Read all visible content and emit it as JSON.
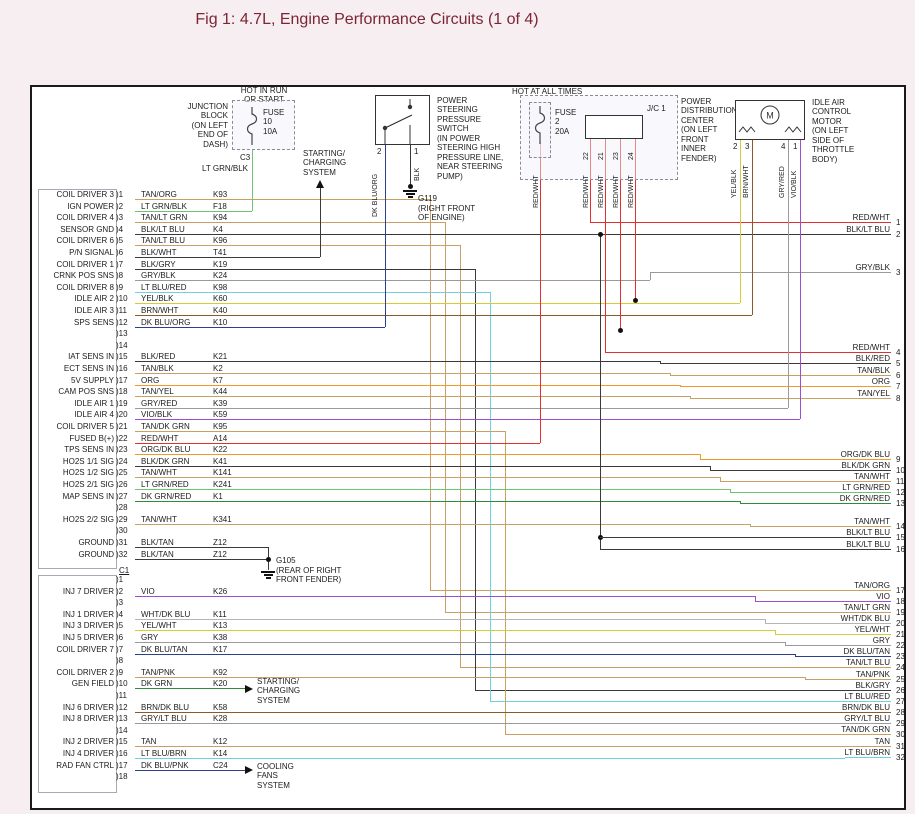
{
  "title": "Fig 1: 4.7L, Engine Performance Circuits (1 of 4)",
  "colors": {
    "title_text": "#7c2535",
    "page_bg": "#f6eef0",
    "diagram_bg": "#ffffff"
  },
  "wire_colors": {
    "TAN": "#c9a063",
    "LT GRN": "#6fc46f",
    "BLK": "#3a3a3a",
    "YEL": "#d6cc38",
    "BRN": "#8a5a2b",
    "DK BLU": "#2b3f8c",
    "GRY": "#9a9a9a",
    "LT BLU": "#6fd0e0",
    "VIO": "#9b4fd0",
    "ORG": "#f09a2a",
    "RED": "#e23030",
    "DK GRN": "#2e8b3a",
    "WHT": "#b5b5b5",
    "PNK": "#eba0c0"
  },
  "pcm": {
    "c3": {
      "label": "C3",
      "pins": [
        {
          "pin": "1",
          "label": "COIL DRIVER 3",
          "wire": "TAN/ORG",
          "code": "K93"
        },
        {
          "pin": "2",
          "label": "IGN POWER",
          "wire": "LT GRN/BLK",
          "code": "F18"
        },
        {
          "pin": "3",
          "label": "COIL DRIVER 4",
          "wire": "TAN/LT GRN",
          "code": "K94"
        },
        {
          "pin": "4",
          "label": "SENSOR GND",
          "wire": "BLK/LT BLU",
          "code": "K4"
        },
        {
          "pin": "5",
          "label": "COIL DRIVER 6",
          "wire": "TAN/LT BLU",
          "code": "K96"
        },
        {
          "pin": "6",
          "label": "P/N SIGNAL",
          "wire": "BLK/WHT",
          "code": "T41"
        },
        {
          "pin": "7",
          "label": "COIL DRIVER 1",
          "wire": "BLK/GRY",
          "code": "K19"
        },
        {
          "pin": "8",
          "label": "CRNK POS SNS",
          "wire": "GRY/BLK",
          "code": "K24"
        },
        {
          "pin": "9",
          "label": "COIL DRIVER 8",
          "wire": "LT BLU/RED",
          "code": "K98"
        },
        {
          "pin": "10",
          "label": "IDLE AIR 2",
          "wire": "YEL/BLK",
          "code": "K60"
        },
        {
          "pin": "11",
          "label": "IDLE AIR 3",
          "wire": "BRN/WHT",
          "code": "K40"
        },
        {
          "pin": "12",
          "label": "SPS SENS",
          "wire": "DK BLU/ORG",
          "code": "K10"
        },
        {
          "pin": "13",
          "label": "",
          "wire": "",
          "code": ""
        },
        {
          "pin": "14",
          "label": "",
          "wire": "",
          "code": ""
        },
        {
          "pin": "15",
          "label": "IAT SENS IN",
          "wire": "BLK/RED",
          "code": "K21"
        },
        {
          "pin": "16",
          "label": "ECT SENS IN",
          "wire": "TAN/BLK",
          "code": "K2"
        },
        {
          "pin": "17",
          "label": "5V SUPPLY",
          "wire": "ORG",
          "code": "K7"
        },
        {
          "pin": "18",
          "label": "CAM POS SNS",
          "wire": "TAN/YEL",
          "code": "K44"
        },
        {
          "pin": "19",
          "label": "IDLE AIR 1",
          "wire": "GRY/RED",
          "code": "K39"
        },
        {
          "pin": "20",
          "label": "IDLE AIR 4",
          "wire": "VIO/BLK",
          "code": "K59"
        },
        {
          "pin": "21",
          "label": "COIL DRIVER 5",
          "wire": "TAN/DK GRN",
          "code": "K95"
        },
        {
          "pin": "22",
          "label": "FUSED B(+)",
          "wire": "RED/WHT",
          "code": "A14"
        },
        {
          "pin": "23",
          "label": "TPS SENS IN",
          "wire": "ORG/DK BLU",
          "code": "K22"
        },
        {
          "pin": "24",
          "label": "HO2S 1/1 SIG",
          "wire": "BLK/DK GRN",
          "code": "K41"
        },
        {
          "pin": "25",
          "label": "HO2S 1/2 SIG",
          "wire": "TAN/WHT",
          "code": "K141"
        },
        {
          "pin": "26",
          "label": "HO2S 2/1 SIG",
          "wire": "LT GRN/RED",
          "code": "K241"
        },
        {
          "pin": "27",
          "label": "MAP SENS IN",
          "wire": "DK GRN/RED",
          "code": "K1"
        },
        {
          "pin": "28",
          "label": "",
          "wire": "",
          "code": ""
        },
        {
          "pin": "29",
          "label": "HO2S 2/2 SIG",
          "wire": "TAN/WHT",
          "code": "K341"
        },
        {
          "pin": "30",
          "label": "",
          "wire": "",
          "code": ""
        },
        {
          "pin": "31",
          "label": "GROUND",
          "wire": "BLK/TAN",
          "code": "Z12"
        },
        {
          "pin": "32",
          "label": "GROUND",
          "wire": "BLK/TAN",
          "code": "Z12"
        }
      ]
    },
    "c1": {
      "label": "C1",
      "pins": [
        {
          "pin": "1",
          "label": "",
          "wire": "",
          "code": ""
        },
        {
          "pin": "2",
          "label": "INJ 7 DRIVER",
          "wire": "VIO",
          "code": "K26"
        },
        {
          "pin": "3",
          "label": "",
          "wire": "",
          "code": ""
        },
        {
          "pin": "4",
          "label": "INJ 1 DRIVER",
          "wire": "WHT/DK BLU",
          "code": "K11"
        },
        {
          "pin": "5",
          "label": "INJ 3 DRIVER",
          "wire": "YEL/WHT",
          "code": "K13"
        },
        {
          "pin": "6",
          "label": "INJ 5 DRIVER",
          "wire": "GRY",
          "code": "K38"
        },
        {
          "pin": "7",
          "label": "COIL DRIVER 7",
          "wire": "DK BLU/TAN",
          "code": "K17"
        },
        {
          "pin": "8",
          "label": "",
          "wire": "",
          "code": ""
        },
        {
          "pin": "9",
          "label": "COIL DRIVER 2",
          "wire": "TAN/PNK",
          "code": "K92"
        },
        {
          "pin": "10",
          "label": "GEN FIELD",
          "wire": "DK GRN",
          "code": "K20"
        },
        {
          "pin": "11",
          "label": "",
          "wire": "",
          "code": ""
        },
        {
          "pin": "12",
          "label": "INJ 6 DRIVER",
          "wire": "BRN/DK BLU",
          "code": "K58"
        },
        {
          "pin": "13",
          "label": "INJ 8 DRIVER",
          "wire": "GRY/LT BLU",
          "code": "K28"
        },
        {
          "pin": "14",
          "label": "",
          "wire": "",
          "code": ""
        },
        {
          "pin": "15",
          "label": "INJ 2 DRIVER",
          "wire": "TAN",
          "code": "K12"
        },
        {
          "pin": "16",
          "label": "INJ 4 DRIVER",
          "wire": "LT BLU/BRN",
          "code": "K14"
        },
        {
          "pin": "17",
          "label": "RAD FAN CTRL",
          "wire": "DK BLU/PNK",
          "code": "C24"
        },
        {
          "pin": "18",
          "label": "",
          "wire": "",
          "code": ""
        }
      ]
    }
  },
  "right_terminals": [
    {
      "num": "1",
      "wire": "RED/WHT"
    },
    {
      "num": "2",
      "wire": "BLK/LT BLU"
    },
    {
      "num": "3",
      "wire": "GRY/BLK"
    },
    {
      "num": "4",
      "wire": "RED/WHT"
    },
    {
      "num": "5",
      "wire": "BLK/RED"
    },
    {
      "num": "6",
      "wire": "TAN/BLK"
    },
    {
      "num": "7",
      "wire": "ORG"
    },
    {
      "num": "8",
      "wire": "TAN/YEL"
    },
    {
      "num": "9",
      "wire": "ORG/DK BLU"
    },
    {
      "num": "10",
      "wire": "BLK/DK GRN"
    },
    {
      "num": "11",
      "wire": "TAN/WHT"
    },
    {
      "num": "12",
      "wire": "LT GRN/RED"
    },
    {
      "num": "13",
      "wire": "DK GRN/RED"
    },
    {
      "num": "14",
      "wire": "TAN/WHT"
    },
    {
      "num": "15",
      "wire": "BLK/LT BLU"
    },
    {
      "num": "16",
      "wire": "BLK/LT BLU"
    },
    {
      "num": "17",
      "wire": "TAN/ORG"
    },
    {
      "num": "18",
      "wire": "VIO"
    },
    {
      "num": "19",
      "wire": "TAN/LT GRN"
    },
    {
      "num": "20",
      "wire": "WHT/DK BLU"
    },
    {
      "num": "21",
      "wire": "YEL/WHT"
    },
    {
      "num": "22",
      "wire": "GRY"
    },
    {
      "num": "23",
      "wire": "DK BLU/TAN"
    },
    {
      "num": "24",
      "wire": "TAN/LT BLU"
    },
    {
      "num": "25",
      "wire": "TAN/PNK"
    },
    {
      "num": "26",
      "wire": "BLK/GRY"
    },
    {
      "num": "27",
      "wire": "LT BLU/RED"
    },
    {
      "num": "28",
      "wire": "BRN/DK BLU"
    },
    {
      "num": "29",
      "wire": "GRY/LT BLU"
    },
    {
      "num": "30",
      "wire": "TAN/DK GRN"
    },
    {
      "num": "31",
      "wire": "TAN"
    },
    {
      "num": "32",
      "wire": "LT BLU/BRN"
    }
  ],
  "components": {
    "junction_block": {
      "hot_label": "HOT IN RUN\nOR START",
      "label": "JUNCTION\nBLOCK\n(ON LEFT\nEND OF\nDASH)",
      "fuse": "FUSE\n10\n10A",
      "connector": "C3",
      "output_wire": "LT GRN/BLK"
    },
    "ps_switch": {
      "label": "POWER\nSTEERING\nPRESSURE\nSWITCH\n(IN POWER\nSTEERING HIGH\nPRESSURE LINE,\nNEAR STEERING\nPUMP)",
      "wires": [
        {
          "pin": "2",
          "wire": "DK BLU/ORG"
        },
        {
          "pin": "1",
          "wire": "BLK"
        }
      ],
      "ground": {
        "id": "G119",
        "location": "(RIGHT FRONT\nOF ENGINE)"
      }
    },
    "pdc": {
      "hot_label": "HOT AT ALL TIMES",
      "label": "POWER\nDISTRIBUTION\nCENTER\n(ON LEFT\nFRONT\nINNER\nFENDER)",
      "fuse": "FUSE\n2\n20A",
      "junction": "J/C 1",
      "pins": [
        "22",
        "21",
        "23",
        "24"
      ],
      "drop_wire": "RED/WHT"
    },
    "iac_motor": {
      "label": "IDLE AIR\nCONTROL\nMOTOR\n(ON LEFT\nSIDE OF\nTHROTTLE\nBODY)",
      "motor_letter": "M",
      "wires": [
        {
          "pin": "2",
          "wire": "YEL/BLK"
        },
        {
          "pin": "3",
          "wire": "BRN/WHT"
        },
        {
          "pin": "4",
          "wire": "GRY/RED"
        },
        {
          "pin": "1",
          "wire": "VIO/BLK"
        }
      ]
    },
    "ground_g105": {
      "id": "G105",
      "location": "(REAR OF RIGHT\nFRONT FENDER)"
    },
    "starting_top": "STARTING/\nCHARGING\nSYSTEM",
    "starting_bottom": "STARTING/\nCHARGING\nSYSTEM",
    "cooling": "COOLING\nFANS\nSYSTEM"
  }
}
